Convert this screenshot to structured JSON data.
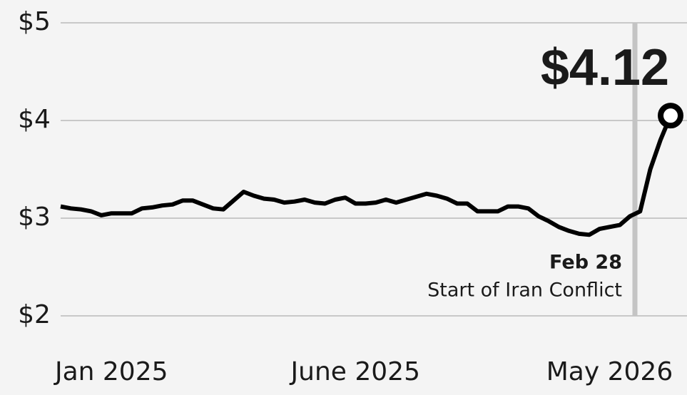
{
  "chart_data": {
    "type": "line",
    "headline": "$4.12",
    "event": {
      "label": "Feb 28",
      "text": "Start of Iran Conflict"
    },
    "categories": [
      null,
      null,
      null,
      null,
      null,
      "Jan 2025",
      null,
      null,
      null,
      null,
      null,
      null,
      null,
      null,
      null,
      null,
      null,
      null,
      null,
      null,
      null,
      null,
      null,
      null,
      null,
      null,
      null,
      null,
      null,
      "June 2025",
      null,
      null,
      null,
      null,
      null,
      null,
      null,
      null,
      null,
      null,
      null,
      null,
      null,
      null,
      null,
      null,
      null,
      null,
      null,
      null,
      null,
      null,
      null,
      null,
      "May 2026",
      null,
      null,
      null,
      null,
      null,
      null
    ],
    "values": [
      3.12,
      3.1,
      3.09,
      3.07,
      3.03,
      3.05,
      3.05,
      3.05,
      3.1,
      3.11,
      3.13,
      3.14,
      3.18,
      3.18,
      3.14,
      3.1,
      3.09,
      3.18,
      3.27,
      3.23,
      3.2,
      3.19,
      3.16,
      3.17,
      3.19,
      3.16,
      3.15,
      3.19,
      3.21,
      3.15,
      3.15,
      3.16,
      3.19,
      3.16,
      3.19,
      3.22,
      3.25,
      3.23,
      3.2,
      3.15,
      3.15,
      3.07,
      3.07,
      3.07,
      3.12,
      3.12,
      3.1,
      3.02,
      2.97,
      2.91,
      2.87,
      2.84,
      2.83,
      2.89,
      2.91,
      2.93,
      3.02,
      3.07,
      3.5,
      3.8,
      4.05
    ],
    "color": "#000000",
    "ylim": [
      2,
      5
    ],
    "yticks": [
      {
        "value": 2,
        "label": "$2"
      },
      {
        "value": 3,
        "label": "$3"
      },
      {
        "value": 4,
        "label": "$4"
      },
      {
        "value": 5,
        "label": "$5"
      }
    ],
    "grid": true
  }
}
